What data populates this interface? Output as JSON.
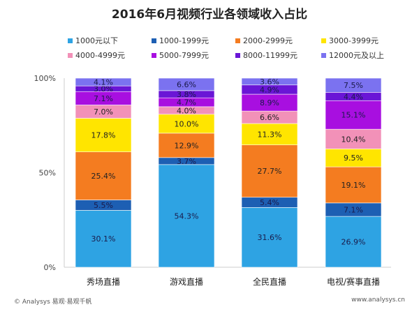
{
  "chart_data": {
    "type": "bar",
    "stacked": true,
    "title": "2016年6月视频行业各领域收入占比",
    "categories": [
      "秀场直播",
      "游戏直播",
      "全民直播",
      "电视/赛事直播"
    ],
    "ylim": [
      0,
      100
    ],
    "yticks": [
      "0%",
      "50%",
      "100%"
    ],
    "legend_position": "top",
    "series": [
      {
        "name": "1000元以下",
        "color": "#2ea3e3",
        "values": [
          30.1,
          54.3,
          31.6,
          26.9
        ]
      },
      {
        "name": "1000-1999元",
        "color": "#1d5fb3",
        "values": [
          5.5,
          3.7,
          5.4,
          7.1
        ]
      },
      {
        "name": "2000-2999元",
        "color": "#f47c20",
        "values": [
          25.4,
          12.9,
          27.7,
          19.1
        ]
      },
      {
        "name": "3000-3999元",
        "color": "#ffe500",
        "values": [
          17.8,
          10.0,
          11.3,
          9.5
        ]
      },
      {
        "name": "4000-4999元",
        "color": "#f291b8",
        "values": [
          7.0,
          4.0,
          6.6,
          10.4
        ]
      },
      {
        "name": "5000-7999元",
        "color": "#a80fe0",
        "values": [
          7.1,
          4.7,
          8.9,
          15.1
        ]
      },
      {
        "name": "8000-11999元",
        "color": "#6a16d6",
        "values": [
          3.0,
          3.8,
          4.9,
          4.4
        ]
      },
      {
        "name": "12000元及以上",
        "color": "#7b72f0",
        "values": [
          4.1,
          6.6,
          3.6,
          7.5
        ]
      }
    ]
  },
  "footer": {
    "left": "© Analysys 易观·易观千帆",
    "right": "www.analysys.cn"
  }
}
